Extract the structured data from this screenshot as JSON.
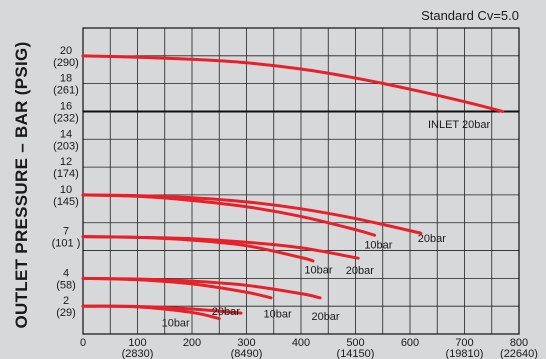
{
  "chart_data": {
    "type": "line",
    "title": "Standard Cv=5.0",
    "xlabel": "",
    "ylabel": "OUTLET PRESSURE – BAR (PSIG)",
    "xlim": [
      0,
      800
    ],
    "ylim": [
      0,
      22
    ],
    "x_ticks": [
      {
        "value": 0,
        "label": "0",
        "sub": ""
      },
      {
        "value": 100,
        "label": "100",
        "sub": "(2830)"
      },
      {
        "value": 200,
        "label": "200",
        "sub": ""
      },
      {
        "value": 300,
        "label": "300",
        "sub": "(8490)"
      },
      {
        "value": 400,
        "label": "400",
        "sub": ""
      },
      {
        "value": 500,
        "label": "500",
        "sub": "(14150)"
      },
      {
        "value": 600,
        "label": "600",
        "sub": ""
      },
      {
        "value": 700,
        "label": "700",
        "sub": "(19810)"
      },
      {
        "value": 800,
        "label": "800",
        "sub": "(22640)"
      }
    ],
    "y_ticks": [
      {
        "value": 20,
        "label": "20",
        "sub": "(290)"
      },
      {
        "value": 18,
        "label": "18",
        "sub": "(261)"
      },
      {
        "value": 16,
        "label": "16",
        "sub": "(232)"
      },
      {
        "value": 14,
        "label": "14",
        "sub": "(203)"
      },
      {
        "value": 12,
        "label": "12",
        "sub": "(174)"
      },
      {
        "value": 10,
        "label": "10",
        "sub": "(145)"
      },
      {
        "value": 7,
        "label": "7",
        "sub": "(101 )"
      },
      {
        "value": 4,
        "label": "4",
        "sub": "(58)"
      },
      {
        "value": 2,
        "label": "2",
        "sub": "(29)"
      }
    ],
    "grid_y": [
      2,
      4,
      6,
      8,
      10,
      12,
      14,
      16,
      18,
      20
    ],
    "grid_x": [
      50,
      100,
      150,
      200,
      250,
      300,
      350,
      400,
      450,
      500,
      550,
      600,
      650,
      700,
      750
    ],
    "heavy_line_y": 16,
    "line_color": "#e8202a",
    "series": [
      {
        "name": "INLET 20bar",
        "x": [
          0,
          100,
          200,
          300,
          400,
          500,
          600,
          700,
          770
        ],
        "y": [
          20,
          19.9,
          19.75,
          19.5,
          19.05,
          18.4,
          17.6,
          16.7,
          16.0
        ]
      },
      {
        "name": "10bar",
        "x": [
          0,
          100,
          200,
          300,
          400,
          500,
          535
        ],
        "y": [
          10,
          9.9,
          9.6,
          9.15,
          8.45,
          7.5,
          7.1
        ]
      },
      {
        "name": "20bar",
        "x": [
          0,
          100,
          200,
          300,
          400,
          500,
          620
        ],
        "y": [
          10,
          9.95,
          9.8,
          9.5,
          9.0,
          8.3,
          7.25
        ]
      },
      {
        "name": "10bar",
        "x": [
          0,
          100,
          200,
          300,
          400,
          422
        ],
        "y": [
          7,
          6.95,
          6.75,
          6.35,
          5.5,
          5.25
        ]
      },
      {
        "name": "20bar",
        "x": [
          0,
          100,
          200,
          300,
          400,
          505
        ],
        "y": [
          7,
          6.95,
          6.85,
          6.6,
          6.2,
          5.45
        ]
      },
      {
        "name": "10bar",
        "x": [
          0,
          100,
          200,
          300,
          345
        ],
        "y": [
          4,
          3.9,
          3.6,
          3.0,
          2.6
        ]
      },
      {
        "name": "20bar",
        "x": [
          0,
          100,
          200,
          300,
          400,
          435
        ],
        "y": [
          4,
          3.95,
          3.8,
          3.5,
          2.9,
          2.6
        ]
      },
      {
        "name": "10bar",
        "x": [
          0,
          100,
          200,
          250
        ],
        "y": [
          2,
          1.95,
          1.55,
          1.1
        ]
      },
      {
        "name": "20bar",
        "x": [
          0,
          100,
          200,
          290
        ],
        "y": [
          2,
          1.98,
          1.8,
          1.5
        ]
      }
    ],
    "labels": [
      {
        "text": "INLET 20bar",
        "x": 690,
        "y": 14.8
      },
      {
        "text": "10bar",
        "x": 542,
        "y": 6.15
      },
      {
        "text": "20bar",
        "x": 640,
        "y": 6.6
      },
      {
        "text": "10bar",
        "x": 432,
        "y": 4.35
      },
      {
        "text": "20bar",
        "x": 508,
        "y": 4.3
      },
      {
        "text": "10bar",
        "x": 357,
        "y": 1.2
      },
      {
        "text": "20bar",
        "x": 445,
        "y": 1.0
      },
      {
        "text": "10bar",
        "x": 170,
        "y": 0.55
      },
      {
        "text": "20bar",
        "x": 262,
        "y": 1.35
      }
    ]
  }
}
